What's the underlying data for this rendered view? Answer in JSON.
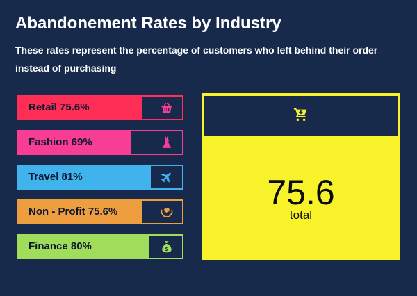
{
  "header": {
    "title": "Abandonement Rates by Industry",
    "subtitle": "These rates represent the percentage of customers who left behind their order instead of purchasing"
  },
  "chart_data": {
    "type": "bar",
    "title": "Abandonement Rates by Industry",
    "subtitle": "These rates represent the percentage of customers who left behind their order instead of purchasing",
    "categories": [
      "Retail",
      "Fashion",
      "Travel",
      "Non - Profit",
      "Finance"
    ],
    "values": [
      75.6,
      69,
      81,
      75.6,
      80
    ],
    "unit": "%",
    "ylim": [
      0,
      100
    ],
    "bars": [
      {
        "label": "Retail 75.6%",
        "value": 75.6,
        "color": "#ff2e56",
        "icon": "shopping-basket-icon"
      },
      {
        "label": "Fashion 69%",
        "value": 69,
        "color": "#f73d94",
        "icon": "dress-icon"
      },
      {
        "label": "Travel 81%",
        "value": 81,
        "color": "#40b3ec",
        "icon": "airplane-icon"
      },
      {
        "label": "Non - Profit 75.6%",
        "value": 75.6,
        "color": "#ee9e3f",
        "icon": "hand-heart-icon"
      },
      {
        "label": "Finance 80%",
        "value": 80,
        "color": "#a0dd5a",
        "icon": "money-bag-icon"
      }
    ]
  },
  "summary": {
    "value": "75.6",
    "label": "total",
    "icon": "shopping-cart-icon",
    "color": "#f8f22a"
  }
}
